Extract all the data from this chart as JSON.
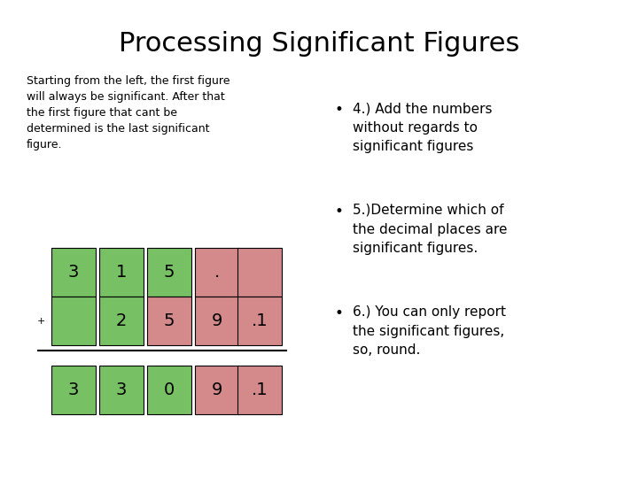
{
  "title": "Processing Significant Figures",
  "left_text": "Starting from the left, the first figure\nwill always be significant. After that\nthe first figure that cant be\ndetermined is the last significant\nfigure.",
  "bullet_points": [
    "4.) Add the numbers\nwithout regards to\nsignificant figures",
    "5.)Determine which of\nthe decimal places are\nsignificant figures.",
    "6.) You can only report\nthe significant figures,\nso, round."
  ],
  "green": "#77c063",
  "pink": "#d4898a",
  "background": "#ffffff",
  "title_fontsize": 22,
  "body_fontsize": 9,
  "bullet_fontsize": 11,
  "cell_fontsize": 14,
  "grid_rows": [
    {
      "cells": [
        "3",
        "1",
        "5",
        ".",
        ""
      ],
      "colors": [
        "green",
        "green",
        "green",
        "pink",
        "pink"
      ]
    },
    {
      "cells": [
        " ",
        "2",
        "5",
        "9",
        ".1"
      ],
      "colors": [
        "green",
        "green",
        "pink",
        "pink",
        "pink"
      ]
    },
    {
      "cells": [
        "3",
        "3",
        "0",
        "9",
        ".1"
      ],
      "colors": [
        "green",
        "green",
        "green",
        "pink",
        "pink"
      ]
    }
  ],
  "plus_sign": "+"
}
